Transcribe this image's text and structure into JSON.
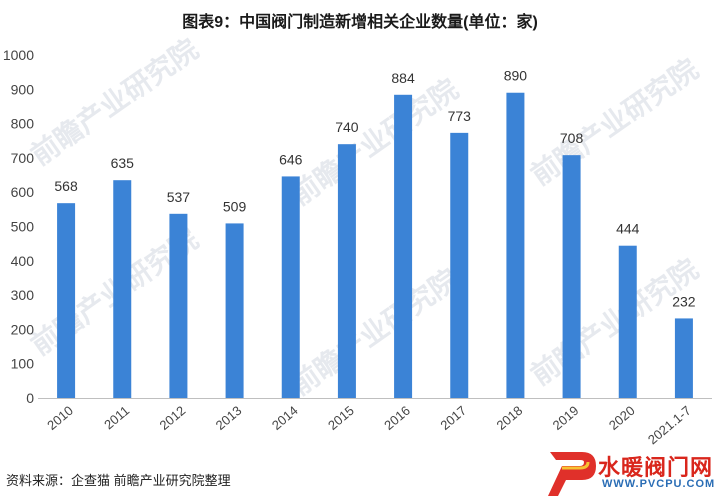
{
  "chart_data": {
    "type": "bar",
    "title": "图表9：中国阀门制造新增相关企业数量(单位：家)",
    "categories": [
      "2010",
      "2011",
      "2012",
      "2013",
      "2014",
      "2015",
      "2016",
      "2017",
      "2018",
      "2019",
      "2020",
      "2021.1-7"
    ],
    "values": [
      568,
      635,
      537,
      509,
      646,
      740,
      884,
      773,
      890,
      708,
      444,
      232
    ],
    "ylim": [
      0,
      1000
    ],
    "yticks": [
      0,
      100,
      200,
      300,
      400,
      500,
      600,
      700,
      800,
      900,
      1000
    ],
    "grid": false,
    "legend": "none",
    "bar_color": "#3b83d6",
    "data_labels": true
  },
  "source": "资料来源：企查猫 前瞻产业研究院整理",
  "watermark": "前瞻产业研究院",
  "logo": {
    "text": "水暖阀门网",
    "url": "WWW.PVCPU.COM",
    "text_color": "#d9261c",
    "url_color": "#2a6db5"
  }
}
